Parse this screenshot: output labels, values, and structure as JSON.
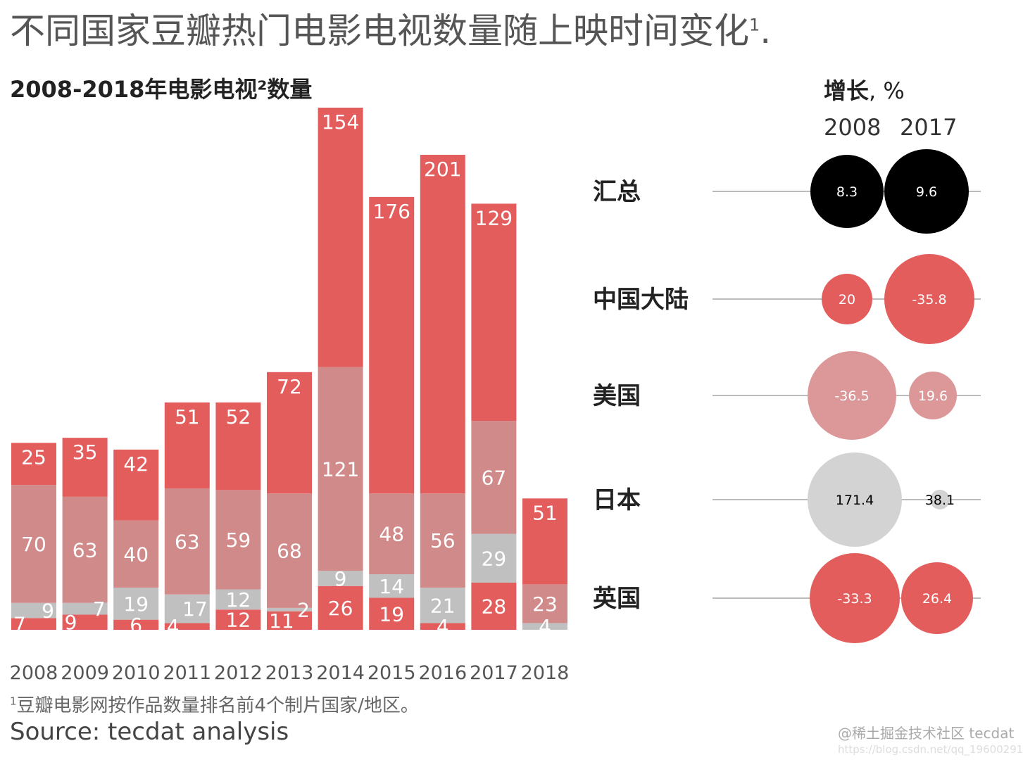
{
  "title": "不同国家豆瓣热门电影电视数量随上映时间变化",
  "title_sup": "1",
  "title_end": ".",
  "chart_data": [
    {
      "type": "bar",
      "stacked": true,
      "title": "2008-2018年电影电视²数量",
      "categories": [
        "2008",
        "2009",
        "2010",
        "2011",
        "2012",
        "2013",
        "2014",
        "2015",
        "2016",
        "2017",
        "2018"
      ],
      "series": [
        {
          "color": "#e35d5d",
          "values": [
            7,
            9,
            6,
            4,
            12,
            11,
            26,
            19,
            4,
            28,
            0
          ]
        },
        {
          "color": "#c0c0c0",
          "values": [
            9,
            7,
            19,
            17,
            12,
            2,
            9,
            14,
            21,
            29,
            4
          ]
        },
        {
          "color": "#d18a8a",
          "values": [
            70,
            63,
            40,
            63,
            59,
            68,
            121,
            48,
            56,
            67,
            23
          ]
        },
        {
          "color": "#e35d5d",
          "values": [
            25,
            35,
            42,
            51,
            52,
            72,
            154,
            176,
            201,
            129,
            51
          ]
        }
      ],
      "ylim": [
        0,
        310
      ],
      "grid": false
    },
    {
      "type": "bubble",
      "title": "增长",
      "unit": ", %",
      "columns": [
        "2008",
        "2017"
      ],
      "rows": [
        {
          "label": "汇总",
          "values": [
            "8.3",
            "9.6"
          ],
          "colors": [
            "#000000",
            "#000000"
          ],
          "text": "#ffffff"
        },
        {
          "label": "中国大陆",
          "values": [
            "20",
            "-35.8"
          ],
          "colors": [
            "#e35d5d",
            "#e35d5d"
          ],
          "text": "#ffffff"
        },
        {
          "label": "美国",
          "values": [
            "-36.5",
            "19.6"
          ],
          "colors": [
            "#dc9898",
            "#dc9898"
          ],
          "text": "#ffffff"
        },
        {
          "label": "日本",
          "values": [
            "171.4",
            "38.1"
          ],
          "colors": [
            "#d3d3d3",
            "#d3d3d3"
          ],
          "text": "#000000"
        },
        {
          "label": "英国",
          "values": [
            "-33.3",
            "26.4"
          ],
          "colors": [
            "#e35d5d",
            "#e35d5d"
          ],
          "text": "#ffffff"
        }
      ]
    }
  ],
  "footnote_sup": "1",
  "footnote": "豆瓣电影网按作品数量排名前4个制片国家/地区。",
  "source": "Source: tecdat analysis",
  "watermark": "@稀土掘金技术社区 tecdat",
  "watermark_url": "https://blog.csdn.net/qq_19600291"
}
